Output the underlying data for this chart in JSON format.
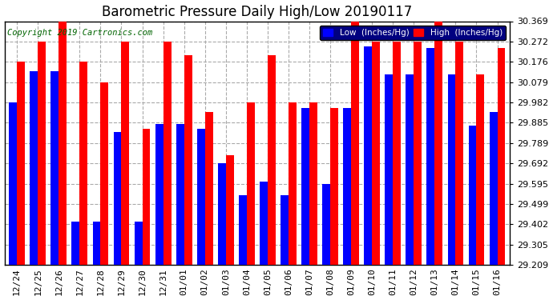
{
  "title": "Barometric Pressure Daily High/Low 20190117",
  "copyright": "Copyright 2019 Cartronics.com",
  "categories": [
    "12/24",
    "12/25",
    "12/26",
    "12/27",
    "12/28",
    "12/29",
    "12/30",
    "12/31",
    "01/01",
    "01/02",
    "01/03",
    "01/04",
    "01/05",
    "01/06",
    "01/07",
    "01/08",
    "01/09",
    "01/10",
    "01/11",
    "01/12",
    "01/13",
    "01/14",
    "01/15",
    "01/16"
  ],
  "low_values": [
    29.982,
    30.13,
    30.13,
    29.415,
    29.415,
    29.84,
    29.415,
    29.88,
    29.88,
    29.855,
    29.692,
    29.54,
    29.605,
    29.54,
    29.955,
    29.595,
    29.955,
    30.248,
    30.115,
    30.115,
    30.24,
    30.115,
    29.87,
    29.935
  ],
  "high_values": [
    30.176,
    30.272,
    30.369,
    30.176,
    30.079,
    30.272,
    29.855,
    30.272,
    30.208,
    29.935,
    29.73,
    29.982,
    30.208,
    29.982,
    29.982,
    29.955,
    30.369,
    30.272,
    30.272,
    30.272,
    30.369,
    30.272,
    30.115,
    30.24
  ],
  "ymin": 29.209,
  "ymax": 30.369,
  "yticks": [
    29.209,
    29.305,
    29.402,
    29.499,
    29.595,
    29.692,
    29.789,
    29.885,
    29.982,
    30.079,
    30.176,
    30.272,
    30.369
  ],
  "low_color": "#0000ff",
  "high_color": "#ff0000",
  "bg_color": "#ffffff",
  "grid_color": "#aaaaaa",
  "bar_width": 0.38,
  "legend_low_label": "Low  (Inches/Hg)",
  "legend_high_label": "High  (Inches/Hg)",
  "title_fontsize": 12,
  "copyright_fontsize": 7.5,
  "tick_fontsize": 8,
  "ylabel_fontsize": 9
}
